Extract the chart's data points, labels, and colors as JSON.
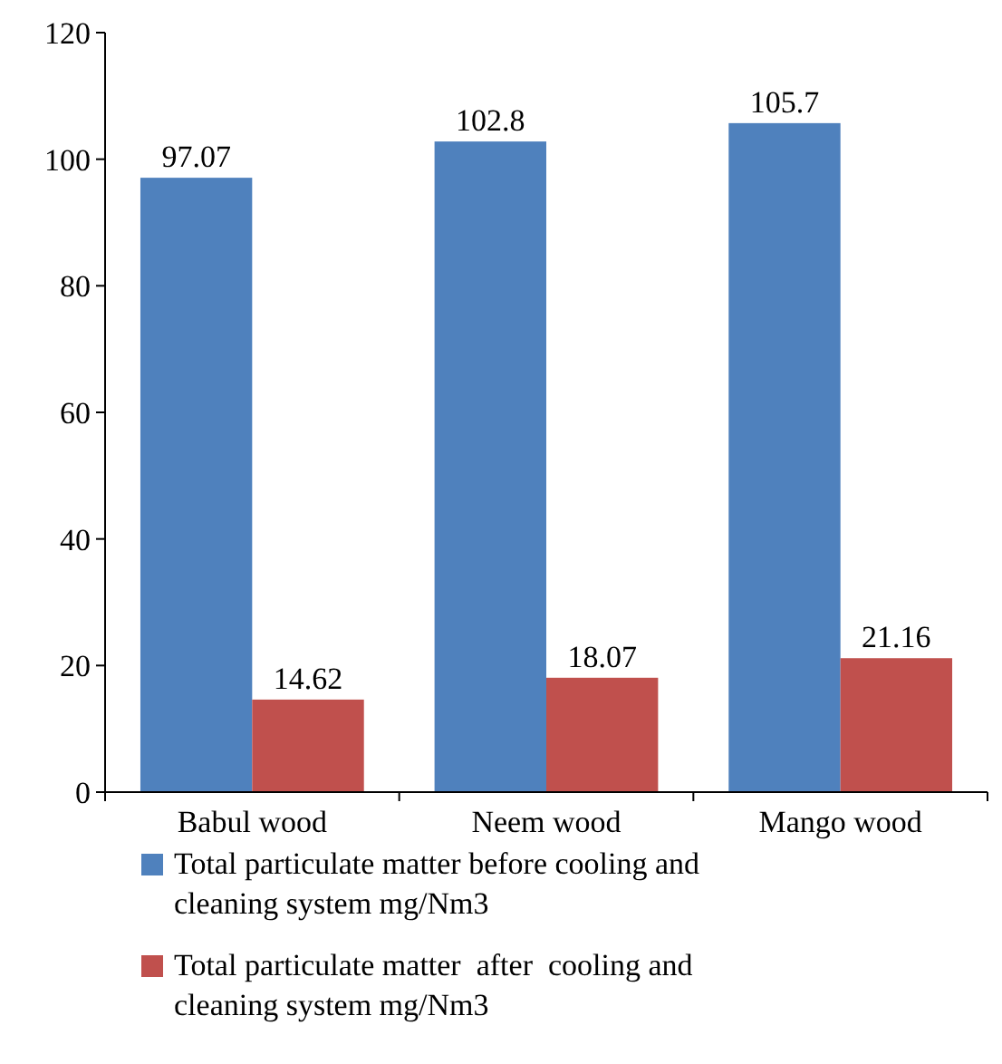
{
  "chart_data": {
    "type": "bar",
    "categories": [
      "Babul wood",
      "Neem wood",
      "Mango wood"
    ],
    "series": [
      {
        "name": "Total particulate matter before cooling and cleaning system mg/Nm3",
        "color": "#4f81bd",
        "values": [
          97.07,
          102.8,
          105.7
        ]
      },
      {
        "name": "Total particulate matter  after  cooling and cleaning system mg/Nm3",
        "color": "#c0504d",
        "values": [
          14.62,
          18.07,
          21.16
        ]
      }
    ],
    "ylim": [
      0,
      120
    ],
    "yticks": [
      0,
      20,
      40,
      60,
      80,
      100,
      120
    ],
    "data_labels": true,
    "legend": "bottom",
    "grid": false
  }
}
